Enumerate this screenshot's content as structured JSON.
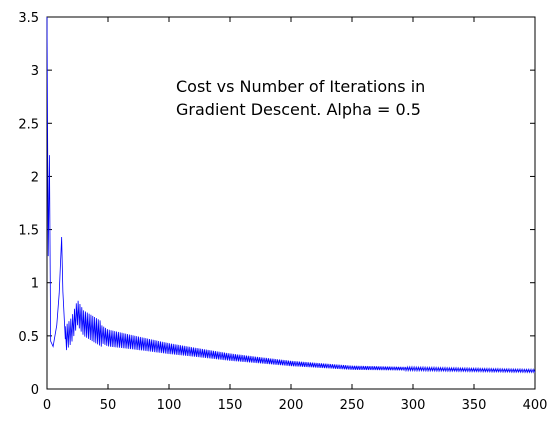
{
  "chart_data": {
    "type": "line",
    "title": "",
    "xlabel": "",
    "ylabel": "",
    "xlim": [
      0,
      400
    ],
    "ylim": [
      0,
      3.5
    ],
    "xticks": [
      0,
      50,
      100,
      150,
      200,
      250,
      300,
      350,
      400
    ],
    "yticks": [
      0,
      0.5,
      1,
      1.5,
      2,
      2.5,
      3,
      3.5
    ],
    "grid": false,
    "annotation": {
      "line1": "Cost vs Number of Iterations in",
      "line2": "Gradient Descent.  Alpha = 0.5"
    },
    "series": [
      {
        "color": "#0000ff",
        "description_points": [
          {
            "x": 0,
            "y": 3.5
          },
          {
            "x": 1,
            "y": 1.25
          },
          {
            "x": 2,
            "y": 2.2
          },
          {
            "x": 3,
            "y": 0.45
          },
          {
            "x": 5,
            "y": 0.4
          },
          {
            "x": 8,
            "y": 0.6
          },
          {
            "x": 10,
            "y": 0.9
          },
          {
            "x": 12,
            "y": 1.43
          },
          {
            "x": 13,
            "y": 0.92
          },
          {
            "x": 15,
            "y": 0.47
          },
          {
            "x": 20,
            "y": 0.55
          },
          {
            "x": 25,
            "y": 0.72
          },
          {
            "x": 30,
            "y": 0.62
          },
          {
            "x": 40,
            "y": 0.55
          },
          {
            "x": 50,
            "y": 0.48
          },
          {
            "x": 100,
            "y": 0.38
          },
          {
            "x": 150,
            "y": 0.3
          },
          {
            "x": 200,
            "y": 0.24
          },
          {
            "x": 250,
            "y": 0.2
          },
          {
            "x": 300,
            "y": 0.19
          },
          {
            "x": 350,
            "y": 0.18
          },
          {
            "x": 400,
            "y": 0.17
          }
        ]
      }
    ]
  }
}
